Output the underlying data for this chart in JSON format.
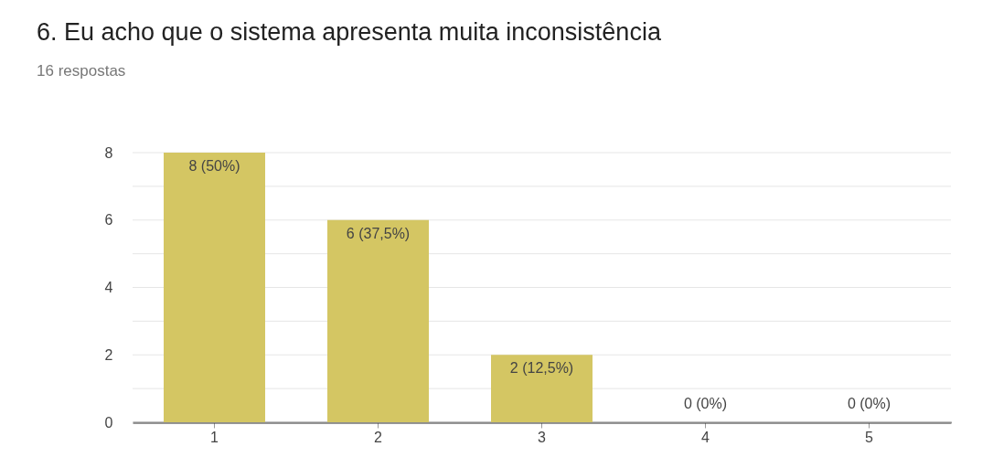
{
  "chart_data": {
    "type": "bar",
    "title": "6. Eu acho que o sistema apresenta muita inconsistência",
    "subtitle": "16 respostas",
    "categories": [
      "1",
      "2",
      "3",
      "4",
      "5"
    ],
    "values": [
      8,
      6,
      2,
      0,
      0
    ],
    "value_labels": [
      "8 (50%)",
      "6 (37,5%)",
      "2 (12,5%)",
      "0 (0%)",
      "0 (0%)"
    ],
    "color": "#d4c663",
    "ylim": [
      0,
      8
    ],
    "yticks": [
      0,
      {
        "value": 1,
        "label": null
      },
      2,
      {
        "value": 3,
        "label": null
      },
      4,
      {
        "value": 5,
        "label": null
      },
      6,
      {
        "value": 7,
        "label": null
      },
      8
    ],
    "grid": "y"
  }
}
